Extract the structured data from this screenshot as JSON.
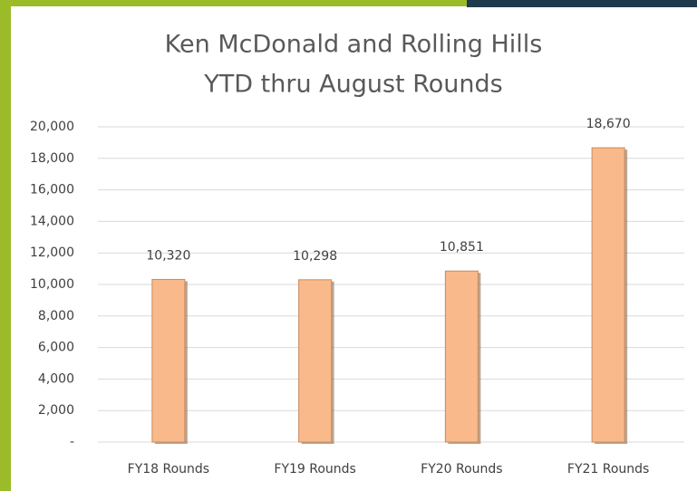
{
  "chart_data": {
    "type": "bar",
    "title": "Ken McDonald and Rolling Hills",
    "subtitle": "YTD thru August Rounds",
    "categories": [
      "FY18 Rounds",
      "FY19 Rounds",
      "FY20 Rounds",
      "FY21 Rounds"
    ],
    "values": [
      10320,
      10298,
      10851,
      18670
    ],
    "value_labels": [
      "10,320",
      "10,298",
      "10,851",
      "18,670"
    ],
    "color": "#f9b98a",
    "ylim": [
      0,
      20000
    ],
    "yticks": [
      {
        "value": 0,
        "label": "-"
      },
      {
        "value": 2000,
        "label": "2,000"
      },
      {
        "value": 4000,
        "label": "4,000"
      },
      {
        "value": 6000,
        "label": "6,000"
      },
      {
        "value": 8000,
        "label": "8,000"
      },
      {
        "value": 10000,
        "label": "10,000"
      },
      {
        "value": 12000,
        "label": "12,000"
      },
      {
        "value": 14000,
        "label": "14,000"
      },
      {
        "value": 16000,
        "label": "16,000"
      },
      {
        "value": 18000,
        "label": "18,000"
      },
      {
        "value": 20000,
        "label": "20,000"
      }
    ],
    "grid": true
  }
}
